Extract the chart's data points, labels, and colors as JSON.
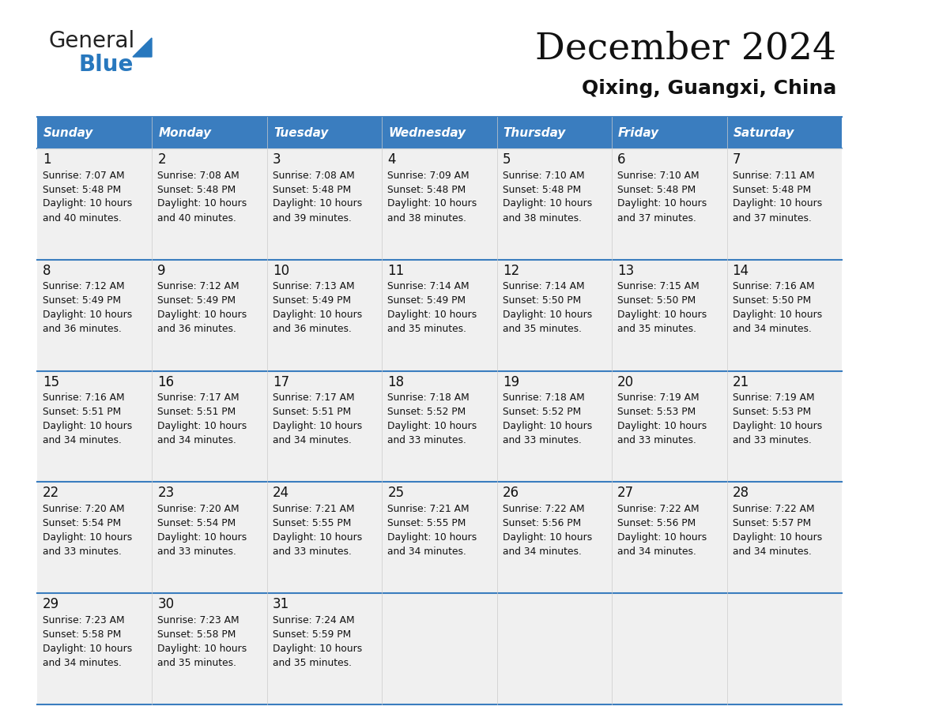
{
  "title": "December 2024",
  "subtitle": "Qixing, Guangxi, China",
  "header_bg_color": "#3a7dbf",
  "header_text_color": "#ffffff",
  "cell_bg_color": "#f0f0f0",
  "border_color": "#3a7dbf",
  "days_of_week": [
    "Sunday",
    "Monday",
    "Tuesday",
    "Wednesday",
    "Thursday",
    "Friday",
    "Saturday"
  ],
  "weeks": [
    [
      {
        "day": "1",
        "sunrise": "7:07 AM",
        "sunset": "5:48 PM",
        "daylight_line1": "Daylight: 10 hours",
        "daylight_line2": "and 40 minutes."
      },
      {
        "day": "2",
        "sunrise": "7:08 AM",
        "sunset": "5:48 PM",
        "daylight_line1": "Daylight: 10 hours",
        "daylight_line2": "and 40 minutes."
      },
      {
        "day": "3",
        "sunrise": "7:08 AM",
        "sunset": "5:48 PM",
        "daylight_line1": "Daylight: 10 hours",
        "daylight_line2": "and 39 minutes."
      },
      {
        "day": "4",
        "sunrise": "7:09 AM",
        "sunset": "5:48 PM",
        "daylight_line1": "Daylight: 10 hours",
        "daylight_line2": "and 38 minutes."
      },
      {
        "day": "5",
        "sunrise": "7:10 AM",
        "sunset": "5:48 PM",
        "daylight_line1": "Daylight: 10 hours",
        "daylight_line2": "and 38 minutes."
      },
      {
        "day": "6",
        "sunrise": "7:10 AM",
        "sunset": "5:48 PM",
        "daylight_line1": "Daylight: 10 hours",
        "daylight_line2": "and 37 minutes."
      },
      {
        "day": "7",
        "sunrise": "7:11 AM",
        "sunset": "5:48 PM",
        "daylight_line1": "Daylight: 10 hours",
        "daylight_line2": "and 37 minutes."
      }
    ],
    [
      {
        "day": "8",
        "sunrise": "7:12 AM",
        "sunset": "5:49 PM",
        "daylight_line1": "Daylight: 10 hours",
        "daylight_line2": "and 36 minutes."
      },
      {
        "day": "9",
        "sunrise": "7:12 AM",
        "sunset": "5:49 PM",
        "daylight_line1": "Daylight: 10 hours",
        "daylight_line2": "and 36 minutes."
      },
      {
        "day": "10",
        "sunrise": "7:13 AM",
        "sunset": "5:49 PM",
        "daylight_line1": "Daylight: 10 hours",
        "daylight_line2": "and 36 minutes."
      },
      {
        "day": "11",
        "sunrise": "7:14 AM",
        "sunset": "5:49 PM",
        "daylight_line1": "Daylight: 10 hours",
        "daylight_line2": "and 35 minutes."
      },
      {
        "day": "12",
        "sunrise": "7:14 AM",
        "sunset": "5:50 PM",
        "daylight_line1": "Daylight: 10 hours",
        "daylight_line2": "and 35 minutes."
      },
      {
        "day": "13",
        "sunrise": "7:15 AM",
        "sunset": "5:50 PM",
        "daylight_line1": "Daylight: 10 hours",
        "daylight_line2": "and 35 minutes."
      },
      {
        "day": "14",
        "sunrise": "7:16 AM",
        "sunset": "5:50 PM",
        "daylight_line1": "Daylight: 10 hours",
        "daylight_line2": "and 34 minutes."
      }
    ],
    [
      {
        "day": "15",
        "sunrise": "7:16 AM",
        "sunset": "5:51 PM",
        "daylight_line1": "Daylight: 10 hours",
        "daylight_line2": "and 34 minutes."
      },
      {
        "day": "16",
        "sunrise": "7:17 AM",
        "sunset": "5:51 PM",
        "daylight_line1": "Daylight: 10 hours",
        "daylight_line2": "and 34 minutes."
      },
      {
        "day": "17",
        "sunrise": "7:17 AM",
        "sunset": "5:51 PM",
        "daylight_line1": "Daylight: 10 hours",
        "daylight_line2": "and 34 minutes."
      },
      {
        "day": "18",
        "sunrise": "7:18 AM",
        "sunset": "5:52 PM",
        "daylight_line1": "Daylight: 10 hours",
        "daylight_line2": "and 33 minutes."
      },
      {
        "day": "19",
        "sunrise": "7:18 AM",
        "sunset": "5:52 PM",
        "daylight_line1": "Daylight: 10 hours",
        "daylight_line2": "and 33 minutes."
      },
      {
        "day": "20",
        "sunrise": "7:19 AM",
        "sunset": "5:53 PM",
        "daylight_line1": "Daylight: 10 hours",
        "daylight_line2": "and 33 minutes."
      },
      {
        "day": "21",
        "sunrise": "7:19 AM",
        "sunset": "5:53 PM",
        "daylight_line1": "Daylight: 10 hours",
        "daylight_line2": "and 33 minutes."
      }
    ],
    [
      {
        "day": "22",
        "sunrise": "7:20 AM",
        "sunset": "5:54 PM",
        "daylight_line1": "Daylight: 10 hours",
        "daylight_line2": "and 33 minutes."
      },
      {
        "day": "23",
        "sunrise": "7:20 AM",
        "sunset": "5:54 PM",
        "daylight_line1": "Daylight: 10 hours",
        "daylight_line2": "and 33 minutes."
      },
      {
        "day": "24",
        "sunrise": "7:21 AM",
        "sunset": "5:55 PM",
        "daylight_line1": "Daylight: 10 hours",
        "daylight_line2": "and 33 minutes."
      },
      {
        "day": "25",
        "sunrise": "7:21 AM",
        "sunset": "5:55 PM",
        "daylight_line1": "Daylight: 10 hours",
        "daylight_line2": "and 34 minutes."
      },
      {
        "day": "26",
        "sunrise": "7:22 AM",
        "sunset": "5:56 PM",
        "daylight_line1": "Daylight: 10 hours",
        "daylight_line2": "and 34 minutes."
      },
      {
        "day": "27",
        "sunrise": "7:22 AM",
        "sunset": "5:56 PM",
        "daylight_line1": "Daylight: 10 hours",
        "daylight_line2": "and 34 minutes."
      },
      {
        "day": "28",
        "sunrise": "7:22 AM",
        "sunset": "5:57 PM",
        "daylight_line1": "Daylight: 10 hours",
        "daylight_line2": "and 34 minutes."
      }
    ],
    [
      {
        "day": "29",
        "sunrise": "7:23 AM",
        "sunset": "5:58 PM",
        "daylight_line1": "Daylight: 10 hours",
        "daylight_line2": "and 34 minutes."
      },
      {
        "day": "30",
        "sunrise": "7:23 AM",
        "sunset": "5:58 PM",
        "daylight_line1": "Daylight: 10 hours",
        "daylight_line2": "and 35 minutes."
      },
      {
        "day": "31",
        "sunrise": "7:24 AM",
        "sunset": "5:59 PM",
        "daylight_line1": "Daylight: 10 hours",
        "daylight_line2": "and 35 minutes."
      },
      null,
      null,
      null,
      null
    ]
  ],
  "logo_text1": "General",
  "logo_text2": "Blue",
  "logo_color1": "#222222",
  "logo_color2": "#2878be",
  "logo_triangle_color": "#2878be"
}
